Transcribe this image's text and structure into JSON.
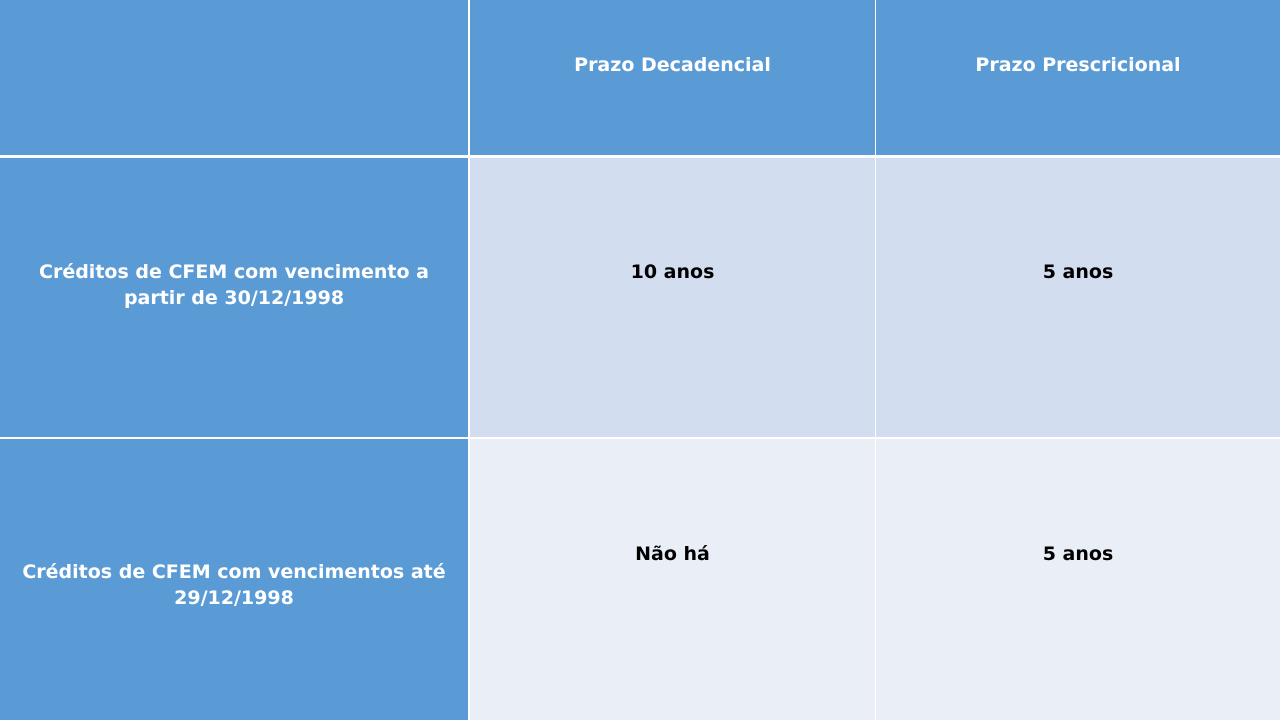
{
  "table": {
    "headers": [
      "",
      "Prazo Decadencial",
      "Prazo Prescricional"
    ],
    "rows": [
      {
        "label": "Créditos de CFEM com vencimento a partir de 30/12/1998",
        "decadencial": "10 anos",
        "prescricional": "5 anos"
      },
      {
        "label": "Créditos de CFEM com vencimentos até 29/12/1998",
        "decadencial": "Não há",
        "prescricional": "5 anos"
      }
    ]
  },
  "colors": {
    "header": "#5B9BD5",
    "row_odd": "#D2DEEF",
    "row_even": "#EAEFF7"
  }
}
